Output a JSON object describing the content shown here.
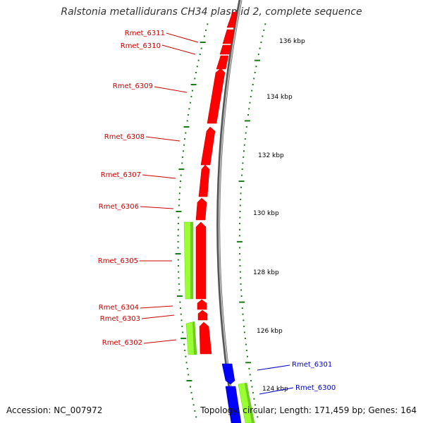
{
  "title": "Ralstonia metallidurans CH34 plasmid 2, complete sequence",
  "footer": {
    "accession": "Accession: NC_007972",
    "summary": "Topology: circular; Length: 171,459 bp; Genes: 164"
  },
  "colors": {
    "reverse_gene": "#ff0000",
    "forward_gene": "#0000ff",
    "other_feature": "#99ff33",
    "backbone": "#888888",
    "tick": "#1a7a1a"
  },
  "ruler": [
    {
      "label": "136 kbp",
      "kbp": 136
    },
    {
      "label": "134 kbp",
      "kbp": 134
    },
    {
      "label": "132 kbp",
      "kbp": 132
    },
    {
      "label": "130 kbp",
      "kbp": 130
    },
    {
      "label": "128 kbp",
      "kbp": 128
    },
    {
      "label": "126 kbp",
      "kbp": 126
    },
    {
      "label": "124 kbp",
      "kbp": 124
    }
  ],
  "genes": [
    {
      "name": "Rmet_6311",
      "strand": "reverse"
    },
    {
      "name": "Rmet_6310",
      "strand": "reverse"
    },
    {
      "name": "Rmet_6309",
      "strand": "reverse"
    },
    {
      "name": "Rmet_6308",
      "strand": "reverse"
    },
    {
      "name": "Rmet_6307",
      "strand": "reverse"
    },
    {
      "name": "Rmet_6306",
      "strand": "reverse"
    },
    {
      "name": "Rmet_6305",
      "strand": "reverse"
    },
    {
      "name": "Rmet_6304",
      "strand": "reverse"
    },
    {
      "name": "Rmet_6303",
      "strand": "reverse"
    },
    {
      "name": "Rmet_6302",
      "strand": "reverse"
    },
    {
      "name": "Rmet_6301",
      "strand": "forward"
    },
    {
      "name": "Rmet_6300",
      "strand": "forward"
    }
  ]
}
